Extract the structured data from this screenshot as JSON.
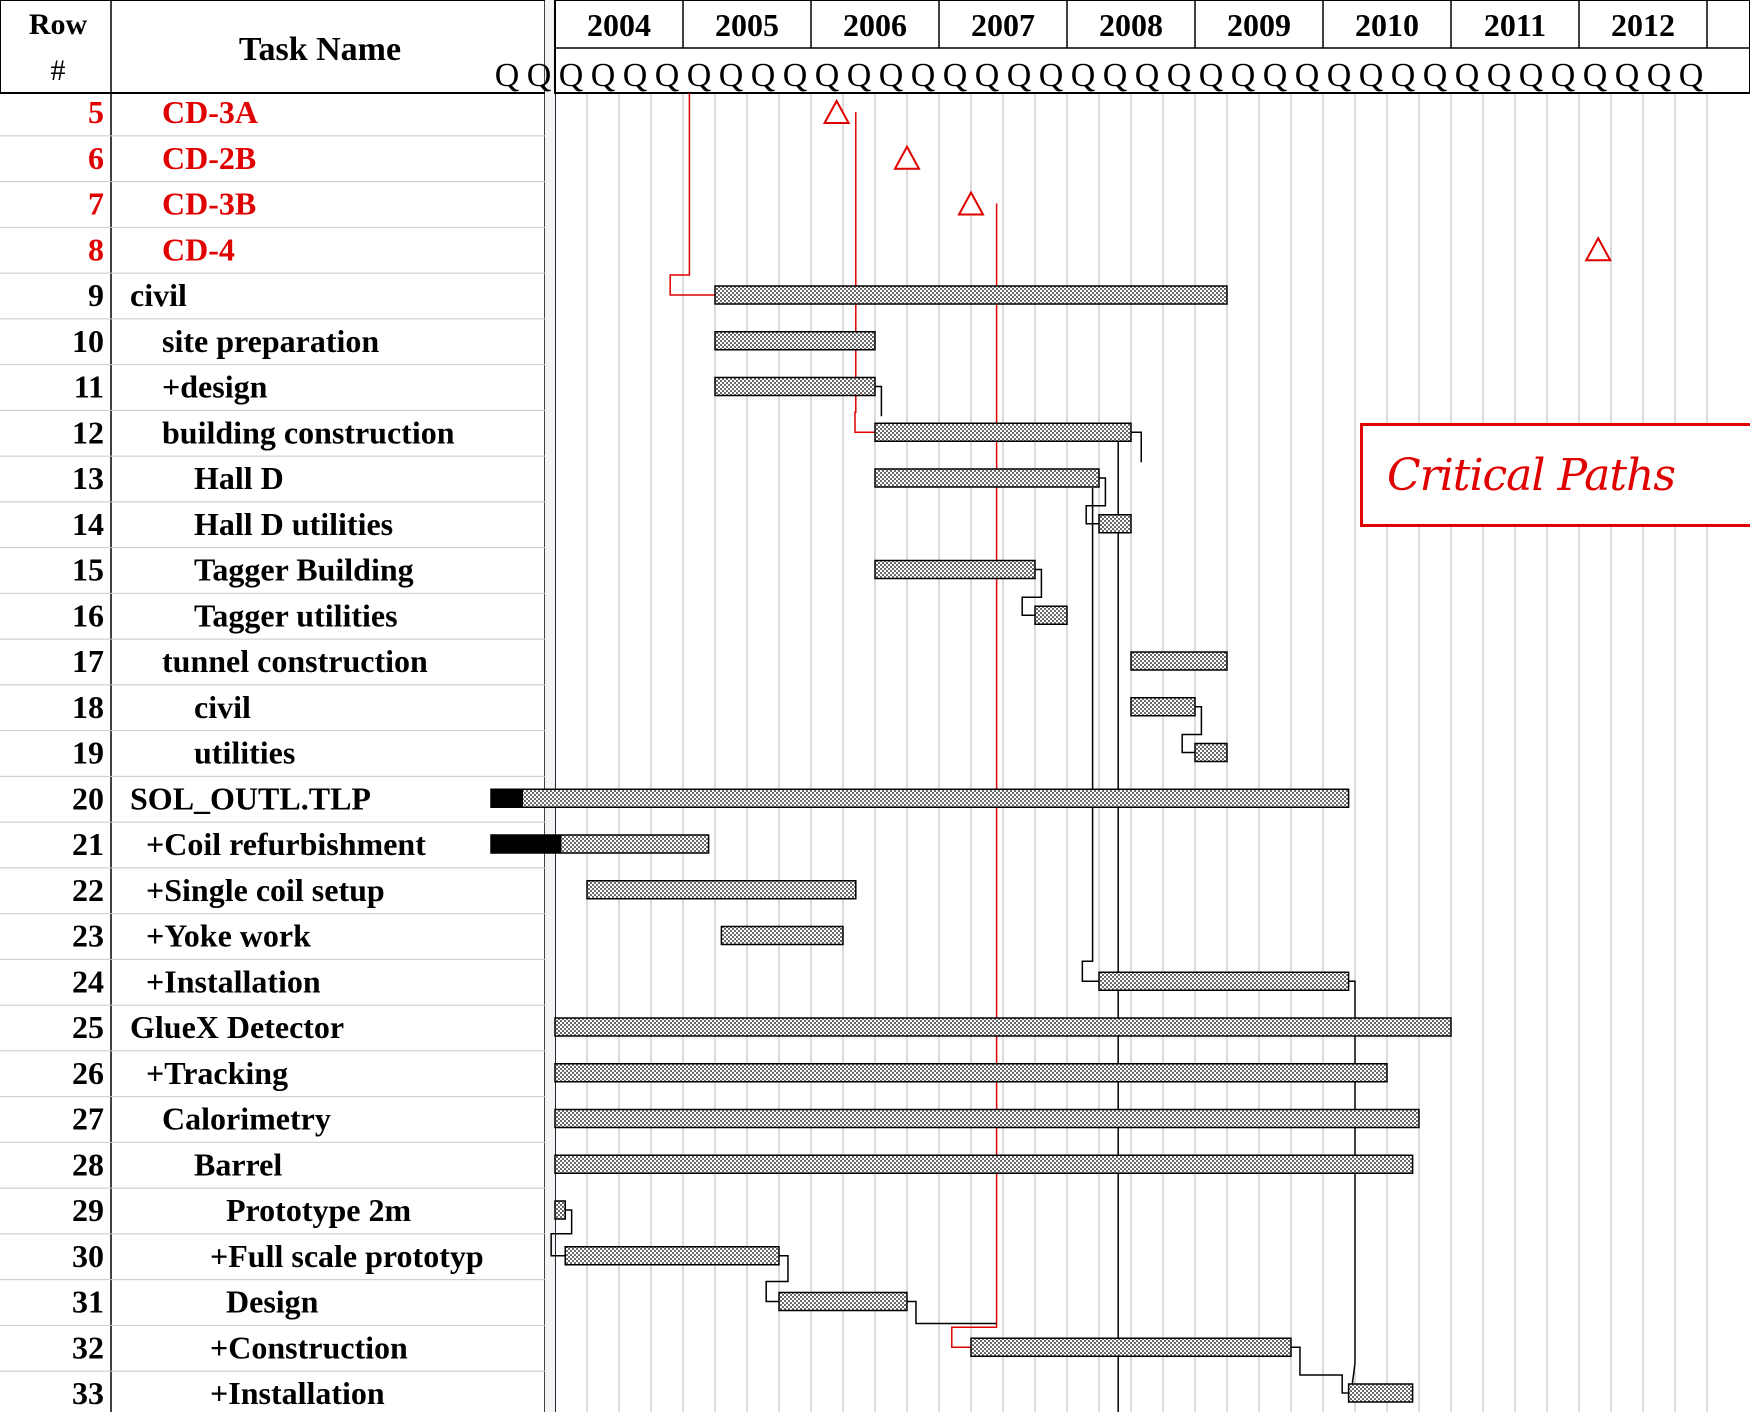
{
  "header": {
    "row_label_line1": "Row",
    "row_label_line2": "#",
    "task_label": "Task Name",
    "quarter_letter": "Q"
  },
  "years": [
    "2004",
    "2005",
    "2006",
    "2007",
    "2008",
    "2009",
    "2010",
    "2011",
    "2012"
  ],
  "callout": {
    "text": "Critical Paths"
  },
  "colors": {
    "critical": "#e00000",
    "bar_fill": "#8a8a8a",
    "link": "#000000",
    "status_line": "#2020b0",
    "grid": "#b8b8b8"
  },
  "chart_data": {
    "type": "gantt",
    "time_axis": {
      "start": 2003.5,
      "end": 2013.0,
      "quarters_per_year": 4,
      "status_date": 2004.0,
      "markers": [
        2005.0,
        2007.2,
        2008.2
      ]
    },
    "rows": [
      {
        "id": 5,
        "name": "CD-3A",
        "indent": 1,
        "critical": true,
        "kind": "milestone",
        "at": 2006.2
      },
      {
        "id": 6,
        "name": "CD-2B",
        "indent": 1,
        "critical": true,
        "kind": "milestone",
        "at": 2006.75
      },
      {
        "id": 7,
        "name": "CD-3B",
        "indent": 1,
        "critical": true,
        "kind": "milestone",
        "at": 2007.25
      },
      {
        "id": 8,
        "name": "CD-4",
        "indent": 1,
        "critical": true,
        "kind": "milestone",
        "at": 2012.15
      },
      {
        "id": 9,
        "name": "civil",
        "indent": 0,
        "kind": "bar",
        "start": 2005.25,
        "end": 2009.25
      },
      {
        "id": 10,
        "name": "site preparation",
        "indent": 1,
        "kind": "bar",
        "start": 2005.25,
        "end": 2006.5
      },
      {
        "id": 11,
        "name": "+design",
        "indent": 1,
        "kind": "bar",
        "start": 2005.25,
        "end": 2006.5
      },
      {
        "id": 12,
        "name": "building construction",
        "indent": 1,
        "kind": "bar",
        "start": 2006.5,
        "end": 2008.5
      },
      {
        "id": 13,
        "name": "Hall D",
        "indent": 2,
        "kind": "bar",
        "start": 2006.5,
        "end": 2008.25
      },
      {
        "id": 14,
        "name": "Hall D utilities",
        "indent": 2,
        "kind": "bar",
        "start": 2008.25,
        "end": 2008.5
      },
      {
        "id": 15,
        "name": "Tagger Building",
        "indent": 2,
        "kind": "bar",
        "start": 2006.5,
        "end": 2007.75
      },
      {
        "id": 16,
        "name": "Tagger utilities",
        "indent": 2,
        "kind": "bar",
        "start": 2007.75,
        "end": 2008.0
      },
      {
        "id": 17,
        "name": "tunnel construction",
        "indent": 1,
        "kind": "bar",
        "start": 2008.5,
        "end": 2009.25
      },
      {
        "id": 18,
        "name": "civil",
        "indent": 2,
        "kind": "bar",
        "start": 2008.5,
        "end": 2009.0
      },
      {
        "id": 19,
        "name": "utilities",
        "indent": 2,
        "kind": "bar",
        "start": 2009.0,
        "end": 2009.25
      },
      {
        "id": 20,
        "name": "SOL_OUTL.TLP",
        "indent": 0,
        "kind": "bar",
        "start": 2003.5,
        "end": 2010.2,
        "done": 2003.75
      },
      {
        "id": 21,
        "name": "+Coil refurbishment",
        "indent": 0.5,
        "kind": "bar",
        "start": 2003.5,
        "end": 2005.2,
        "done": 2004.05
      },
      {
        "id": 22,
        "name": "+Single coil setup",
        "indent": 0.5,
        "kind": "bar",
        "start": 2004.25,
        "end": 2006.35
      },
      {
        "id": 23,
        "name": "+Yoke work",
        "indent": 0.5,
        "kind": "bar",
        "start": 2005.3,
        "end": 2006.25
      },
      {
        "id": 24,
        "name": "+Installation",
        "indent": 0.5,
        "kind": "bar",
        "start": 2008.25,
        "end": 2010.2
      },
      {
        "id": 25,
        "name": "GlueX Detector",
        "indent": 0,
        "kind": "bar",
        "start": 2004.0,
        "end": 2011.0
      },
      {
        "id": 26,
        "name": "+Tracking",
        "indent": 0.5,
        "kind": "bar",
        "start": 2004.0,
        "end": 2010.5
      },
      {
        "id": 27,
        "name": "Calorimetry",
        "indent": 1,
        "kind": "bar",
        "start": 2004.0,
        "end": 2010.75
      },
      {
        "id": 28,
        "name": "Barrel",
        "indent": 2,
        "kind": "bar",
        "start": 2004.0,
        "end": 2010.7
      },
      {
        "id": 29,
        "name": "Prototype 2m",
        "indent": 3,
        "kind": "bar",
        "start": 2004.0,
        "end": 2004.08
      },
      {
        "id": 30,
        "name": "+Full scale prototyp",
        "indent": 2.5,
        "kind": "bar",
        "start": 2004.08,
        "end": 2005.75
      },
      {
        "id": 31,
        "name": "Design",
        "indent": 3,
        "kind": "bar",
        "start": 2005.75,
        "end": 2006.75
      },
      {
        "id": 32,
        "name": "+Construction",
        "indent": 2.5,
        "kind": "bar",
        "start": 2007.25,
        "end": 2009.75
      },
      {
        "id": 33,
        "name": "+Installation",
        "indent": 2.5,
        "kind": "bar",
        "start": 2010.2,
        "end": 2010.7
      }
    ]
  }
}
